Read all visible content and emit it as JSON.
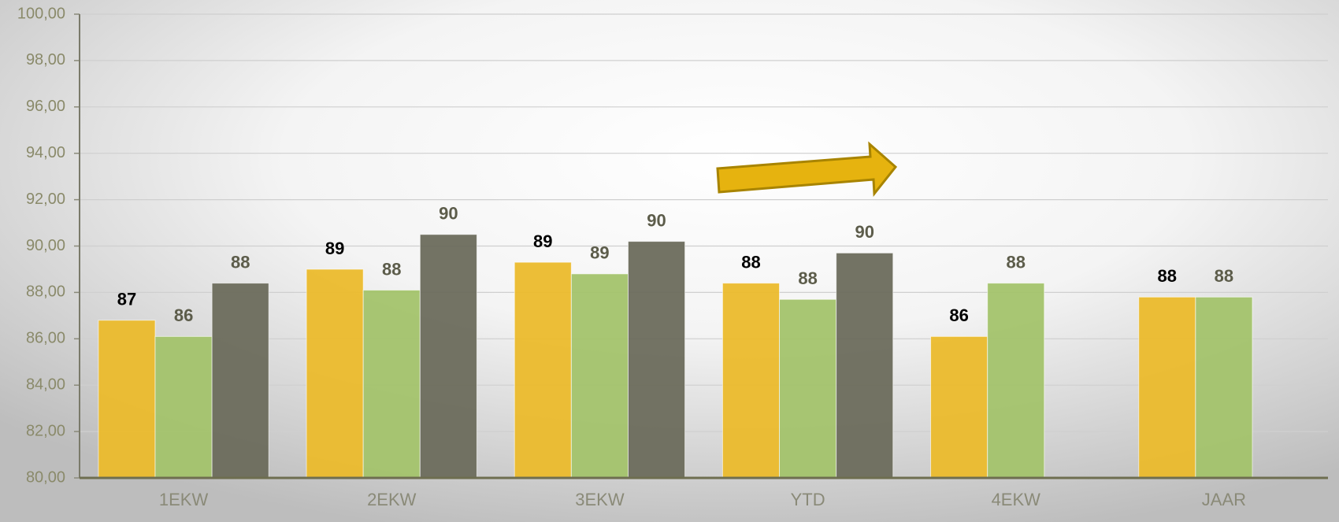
{
  "chart_data": {
    "type": "bar",
    "categories": [
      "1EKW",
      "2EKW",
      "3EKW",
      "YTD",
      "4EKW",
      "JAAR"
    ],
    "series": [
      {
        "color": "#ebbb2c",
        "label_color": "#000000",
        "values": [
          86.8,
          89.0,
          89.3,
          88.4,
          86.1,
          87.8
        ],
        "value_labels": [
          "87",
          "89",
          "89",
          "88",
          "86",
          "88"
        ]
      },
      {
        "color": "#a3c36c",
        "label_color": "#5c5c4a",
        "values": [
          86.1,
          88.1,
          88.8,
          87.7,
          88.4,
          87.8
        ],
        "value_labels": [
          "86",
          "88",
          "89",
          "88",
          "88",
          "88"
        ]
      },
      {
        "color": "#6b6b5c",
        "label_color": "#5c5c4a",
        "values": [
          88.4,
          90.5,
          90.2,
          89.7,
          null,
          null
        ],
        "value_labels": [
          "88",
          "90",
          "90",
          "90",
          null,
          null
        ]
      }
    ],
    "ylim": [
      80,
      100
    ],
    "yticks": [
      {
        "value": 80,
        "label": "80,00"
      },
      {
        "value": 82,
        "label": "82,00"
      },
      {
        "value": 84,
        "label": "84,00"
      },
      {
        "value": 86,
        "label": "86,00"
      },
      {
        "value": 88,
        "label": "88,00"
      },
      {
        "value": 90,
        "label": "90,00"
      },
      {
        "value": 92,
        "label": "92,00"
      },
      {
        "value": 94,
        "label": "94,00"
      },
      {
        "value": 96,
        "label": "96,00"
      },
      {
        "value": 98,
        "label": "98,00"
      },
      {
        "value": 100,
        "label": "100,00"
      }
    ],
    "grid": true
  }
}
